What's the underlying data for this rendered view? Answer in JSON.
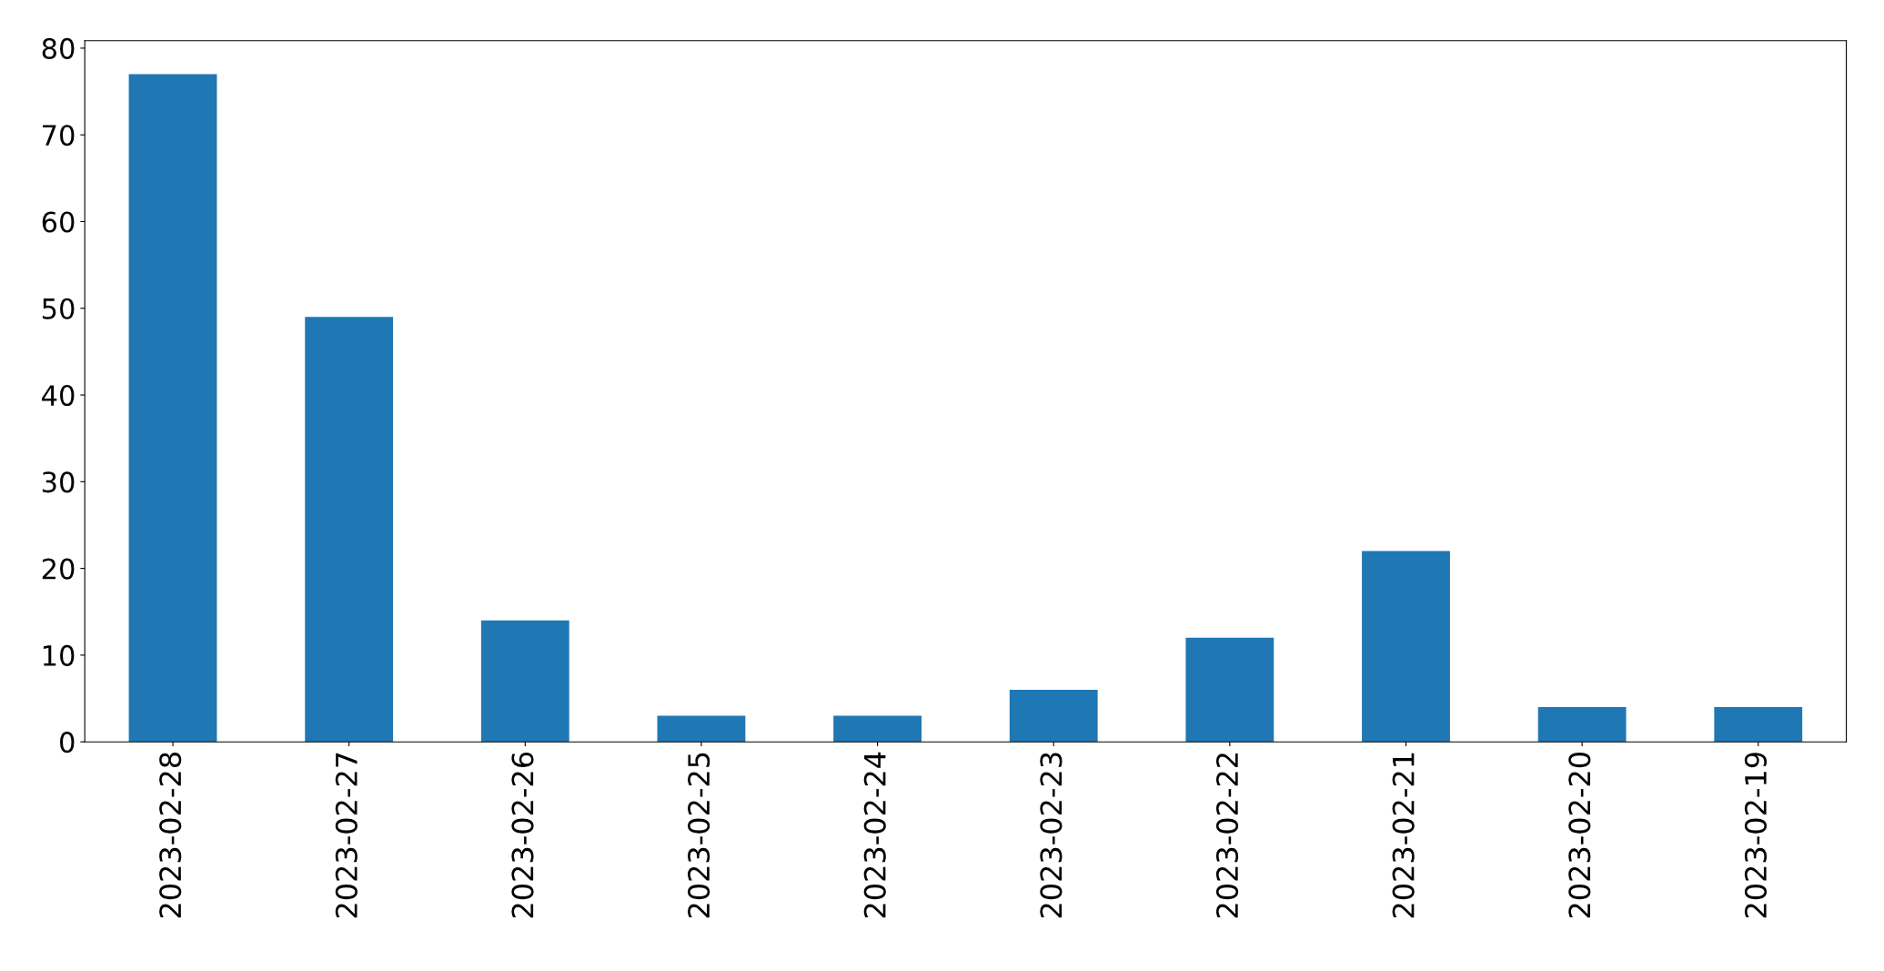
{
  "chart_data": {
    "type": "bar",
    "categories": [
      "2023-02-28",
      "2023-02-27",
      "2023-02-26",
      "2023-02-25",
      "2023-02-24",
      "2023-02-23",
      "2023-02-22",
      "2023-02-21",
      "2023-02-20",
      "2023-02-19"
    ],
    "values": [
      77,
      49,
      14,
      3,
      3,
      6,
      12,
      22,
      4,
      4
    ],
    "color": "#1f77b4",
    "ylim": [
      0,
      80.85
    ],
    "yticks": [
      0,
      10,
      20,
      30,
      40,
      50,
      60,
      70,
      80
    ],
    "grid": false
  }
}
